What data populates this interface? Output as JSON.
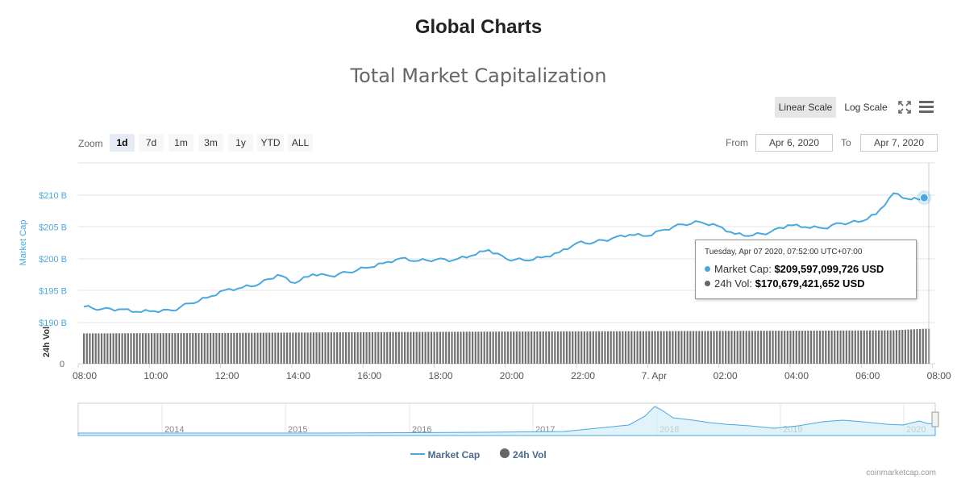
{
  "page": {
    "heading": "Global Charts",
    "chart_title": "Total Market Capitalization",
    "credit": "coinmarketcap.com"
  },
  "toolbar": {
    "scale_buttons": [
      "Linear Scale",
      "Log Scale"
    ],
    "active_scale": "Linear Scale",
    "fullscreen_icon": "fullscreen-icon",
    "menu_icon": "hamburger-menu-icon"
  },
  "zoom": {
    "label": "Zoom",
    "options": [
      "1d",
      "7d",
      "1m",
      "3m",
      "1y",
      "YTD",
      "ALL"
    ],
    "active": "1d"
  },
  "range": {
    "from_label": "From",
    "from_value": "Apr 6, 2020",
    "to_label": "To",
    "to_value": "Apr 7, 2020"
  },
  "tooltip": {
    "time": "Tuesday, Apr 07 2020, 07:52:00 UTC+07:00",
    "market_cap_label": "Market Cap:",
    "market_cap_value": "$209,597,099,726 USD",
    "volume_label": "24h Vol:",
    "volume_value": "$170,679,421,652 USD"
  },
  "legend": {
    "market_cap": "Market Cap",
    "volume": "24h Vol"
  },
  "colors": {
    "market_cap": "#4aa8e0",
    "volume": "#666666",
    "active_zoom_bg": "#e6ebf5"
  },
  "chart_data": {
    "type": "line",
    "x_ticks": [
      "08:00",
      "10:00",
      "12:00",
      "14:00",
      "16:00",
      "18:00",
      "20:00",
      "22:00",
      "7. Apr",
      "02:00",
      "04:00",
      "06:00",
      "08:00"
    ],
    "market_cap": {
      "name": "Market Cap",
      "ylabel": "Market Cap",
      "y_ticks": [
        "$210 B",
        "$205 B",
        "$200 B",
        "$195 B",
        "$190 B"
      ],
      "ylim": [
        190,
        212.5
      ],
      "unit": "billion USD",
      "x_hours": [
        0,
        0.5,
        1,
        1.5,
        2,
        2.5,
        3,
        3.5,
        4,
        4.5,
        5,
        5.5,
        6,
        6.5,
        7,
        7.5,
        8,
        8.5,
        9,
        9.5,
        10,
        10.5,
        11,
        11.5,
        12,
        12.5,
        13,
        13.5,
        14,
        14.5,
        15,
        15.5,
        16,
        16.5,
        17,
        17.5,
        18,
        18.5,
        19,
        19.5,
        20,
        20.5,
        21,
        21.5,
        22,
        22.5,
        23,
        23.5,
        23.87,
        24
      ],
      "values": [
        192.5,
        192.1,
        192.1,
        191.7,
        191.8,
        191.9,
        193.0,
        193.9,
        195.1,
        195.5,
        196.1,
        197.5,
        196.2,
        197.6,
        197.3,
        197.9,
        198.6,
        199.3,
        200.1,
        199.7,
        199.9,
        199.8,
        200.5,
        201.4,
        200.0,
        199.8,
        200.2,
        201.0,
        202.5,
        202.6,
        203.2,
        203.8,
        203.6,
        204.6,
        205.4,
        205.8,
        205.2,
        203.9,
        203.7,
        204.2,
        205.3,
        205.0,
        204.8,
        205.6,
        205.8,
        207.0,
        210.3,
        209.3,
        209.6,
        209.6
      ],
      "highlight": {
        "x_hour": 23.87,
        "value": 209.597
      }
    },
    "volume": {
      "name": "24h Vol",
      "ylabel": "24h Vol",
      "y_ticks": [
        "0"
      ],
      "unit": "billion USD",
      "x_hours": [
        0,
        4,
        8,
        12,
        16,
        20,
        23,
        23.87
      ],
      "values": [
        148,
        150,
        154,
        157,
        159,
        161,
        163,
        170.7
      ]
    },
    "navigator": {
      "year_labels": [
        "2014",
        "2015",
        "2016",
        "2017",
        "2018",
        "2019",
        "2020"
      ]
    }
  }
}
